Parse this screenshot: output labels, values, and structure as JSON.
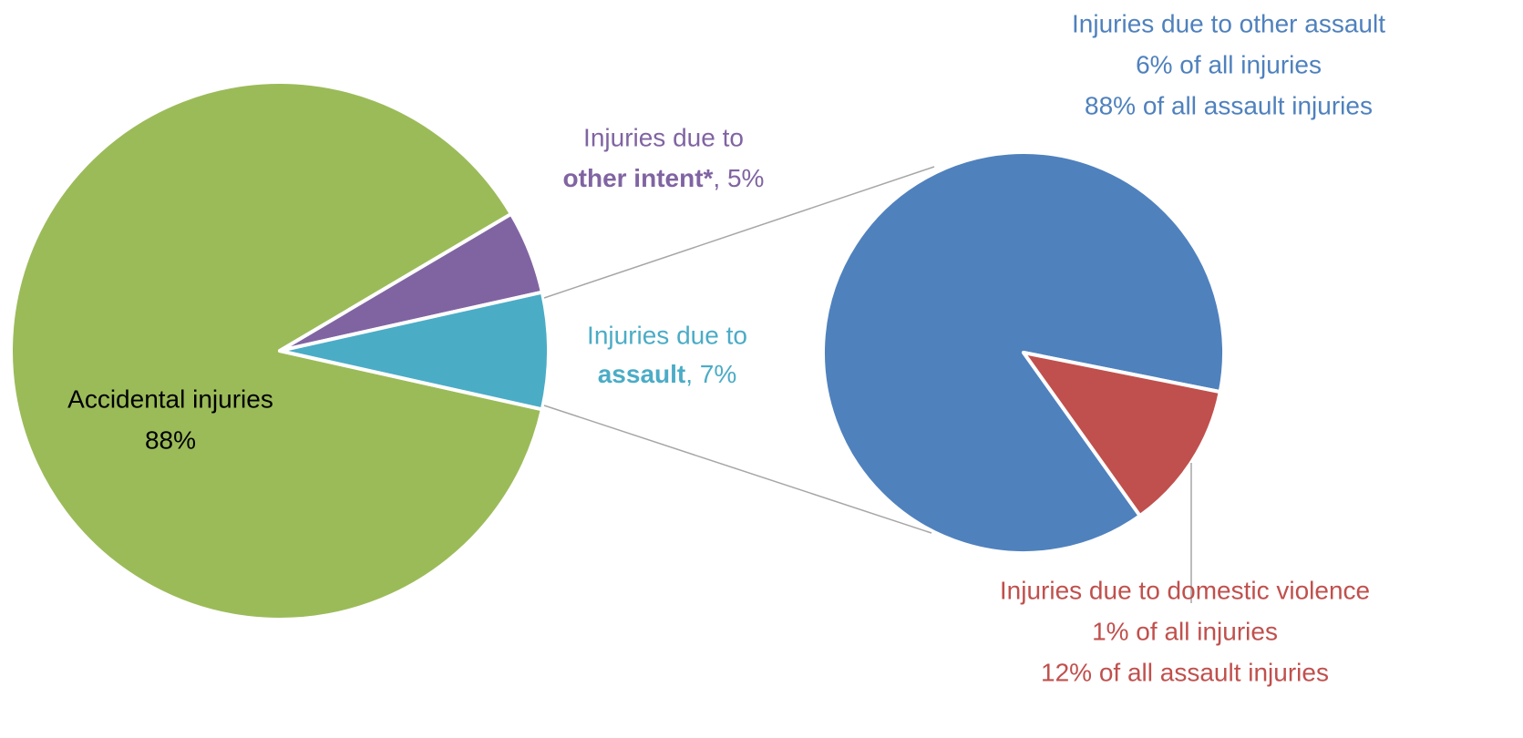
{
  "chart_data": [
    {
      "type": "pie",
      "categories": [
        "Accidental injuries",
        "other intent*",
        "assault"
      ],
      "label_prefixes": [
        null,
        "Injuries due to",
        "Injuries due to"
      ],
      "separators": [
        null,
        ", ",
        ", "
      ],
      "values": [
        88,
        5,
        7
      ],
      "value_labels": [
        "88%",
        "5%",
        "7%"
      ],
      "colors": [
        "#9bbb59",
        "#8064a2",
        "#4bacc6"
      ]
    },
    {
      "type": "pie",
      "categories": [
        "Injuries due to other assault",
        "Injuries due to domestic violence"
      ],
      "values": [
        88,
        12
      ],
      "value_labels": [
        "88% of all assault injuries",
        "12% of all assault injuries"
      ],
      "share_of_all": [
        6,
        1
      ],
      "share_of_all_labels": [
        "6% of all injuries",
        "1% of all injuries"
      ],
      "colors": [
        "#4f81bd",
        "#c0504d"
      ]
    }
  ]
}
